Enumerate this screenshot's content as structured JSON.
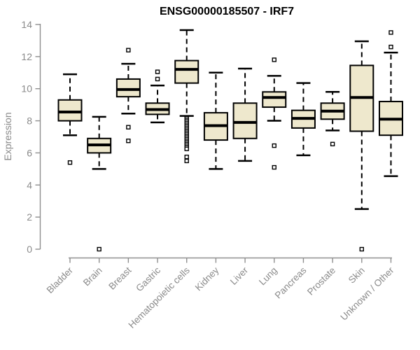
{
  "colors": {
    "box_fill": "#EEE8CD",
    "box_stroke": "#000000",
    "axis": "#8f8f8f",
    "tick_text": "#8a8a8a",
    "title_text": "#000000",
    "background": "#ffffff"
  },
  "chart_data": {
    "type": "boxplot",
    "title": "ENSG00000185507 - IRF7",
    "xlabel": "",
    "ylabel": "Expression",
    "ylim": [
      0,
      14
    ],
    "yticks": [
      0,
      2,
      4,
      6,
      8,
      10,
      12,
      14
    ],
    "grid": false,
    "legend": false,
    "categories": [
      "Bladder",
      "Brain",
      "Breast",
      "Gastric",
      "Hematopoietic cells",
      "Kidney",
      "Liver",
      "Lung",
      "Pancreas",
      "Prostate",
      "Skin",
      "Unknown / Other"
    ],
    "series": [
      {
        "name": "Bladder",
        "whisker_low": 7.1,
        "q1": 8.0,
        "median": 8.55,
        "q3": 9.3,
        "whisker_high": 10.9,
        "outliers": [
          5.4
        ]
      },
      {
        "name": "Brain",
        "whisker_low": 5.0,
        "q1": 6.0,
        "median": 6.5,
        "q3": 6.9,
        "whisker_high": 8.25,
        "outliers": [
          0
        ]
      },
      {
        "name": "Breast",
        "whisker_low": 8.45,
        "q1": 9.5,
        "median": 9.95,
        "q3": 10.6,
        "whisker_high": 11.55,
        "outliers": [
          12.4,
          7.6,
          6.75
        ]
      },
      {
        "name": "Gastric",
        "whisker_low": 7.9,
        "q1": 8.4,
        "median": 8.7,
        "q3": 9.1,
        "whisker_high": 10.2,
        "outliers": [
          11.05,
          10.6
        ]
      },
      {
        "name": "Hematopoietic cells",
        "whisker_low": 8.3,
        "q1": 10.35,
        "median": 11.2,
        "q3": 11.75,
        "whisker_high": 13.65,
        "outliers": [
          8.15,
          8.05,
          7.95,
          7.85,
          7.75,
          7.65,
          7.55,
          7.45,
          7.35,
          7.25,
          7.15,
          7.05,
          6.95,
          6.85,
          6.75,
          6.65,
          6.55,
          6.45,
          6.35,
          6.25,
          5.75,
          5.5
        ]
      },
      {
        "name": "Kidney",
        "whisker_low": 5.0,
        "q1": 6.8,
        "median": 7.7,
        "q3": 8.5,
        "whisker_high": 11.0,
        "outliers": []
      },
      {
        "name": "Liver",
        "whisker_low": 5.5,
        "q1": 6.9,
        "median": 7.9,
        "q3": 9.1,
        "whisker_high": 11.25,
        "outliers": []
      },
      {
        "name": "Lung",
        "whisker_low": 8.0,
        "q1": 8.85,
        "median": 9.45,
        "q3": 9.8,
        "whisker_high": 10.8,
        "outliers": [
          11.8,
          6.45,
          5.1
        ]
      },
      {
        "name": "Pancreas",
        "whisker_low": 5.85,
        "q1": 7.55,
        "median": 8.15,
        "q3": 8.65,
        "whisker_high": 10.35,
        "outliers": []
      },
      {
        "name": "Prostate",
        "whisker_low": 7.4,
        "q1": 8.1,
        "median": 8.6,
        "q3": 9.1,
        "whisker_high": 9.8,
        "outliers": [
          6.55
        ]
      },
      {
        "name": "Skin",
        "whisker_low": 2.5,
        "q1": 7.35,
        "median": 9.45,
        "q3": 11.45,
        "whisker_high": 12.95,
        "outliers": [
          0
        ]
      },
      {
        "name": "Unknown / Other",
        "whisker_low": 4.55,
        "q1": 7.1,
        "median": 8.1,
        "q3": 9.2,
        "whisker_high": 12.25,
        "outliers": [
          13.5,
          12.6
        ]
      }
    ]
  }
}
